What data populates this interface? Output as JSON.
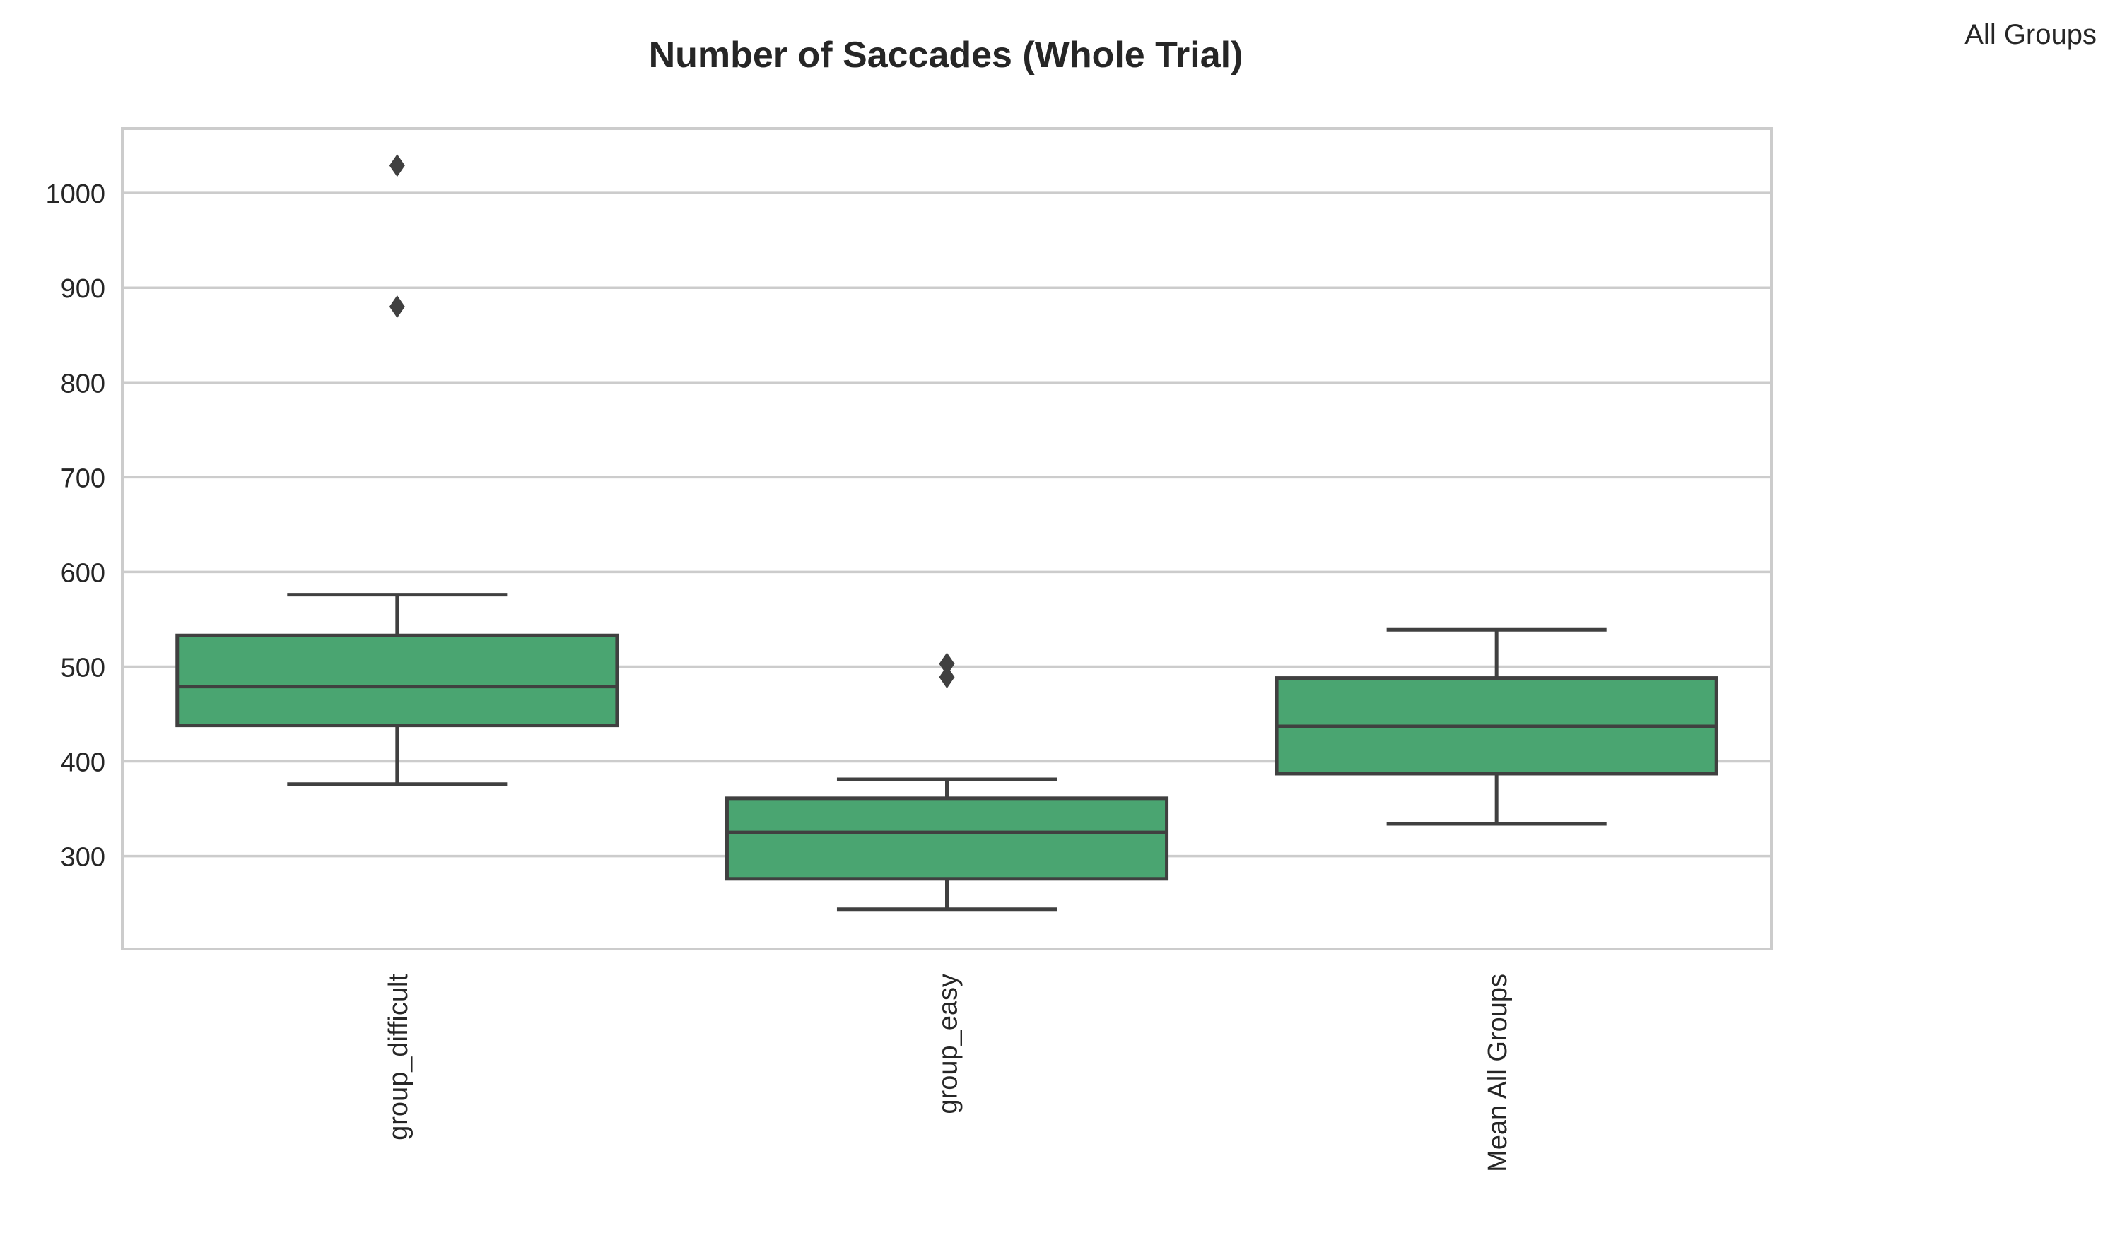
{
  "chart_data": {
    "type": "box",
    "title": "Number of Saccades (Whole Trial)",
    "legend_label": "All Groups",
    "xlabel": "",
    "ylabel": "",
    "ylim": [
      202,
      1068
    ],
    "yticks": [
      300,
      400,
      500,
      600,
      700,
      800,
      900,
      1000
    ],
    "grid": true,
    "box_color": "#4aa571",
    "line_color": "#404040",
    "categories": [
      "group_difficult",
      "group_easy",
      "Mean All Groups"
    ],
    "boxes": [
      {
        "category": "group_difficult",
        "whisker_low": 376,
        "q1": 438,
        "median": 479,
        "q3": 533,
        "whisker_high": 576,
        "outliers": [
          880,
          1029
        ]
      },
      {
        "category": "group_easy",
        "whisker_low": 244,
        "q1": 276,
        "median": 325,
        "q3": 361,
        "whisker_high": 381,
        "outliers": [
          489,
          503
        ]
      },
      {
        "category": "Mean All Groups",
        "whisker_low": 334,
        "q1": 387,
        "median": 437,
        "q3": 488,
        "whisker_high": 539,
        "outliers": []
      }
    ]
  }
}
